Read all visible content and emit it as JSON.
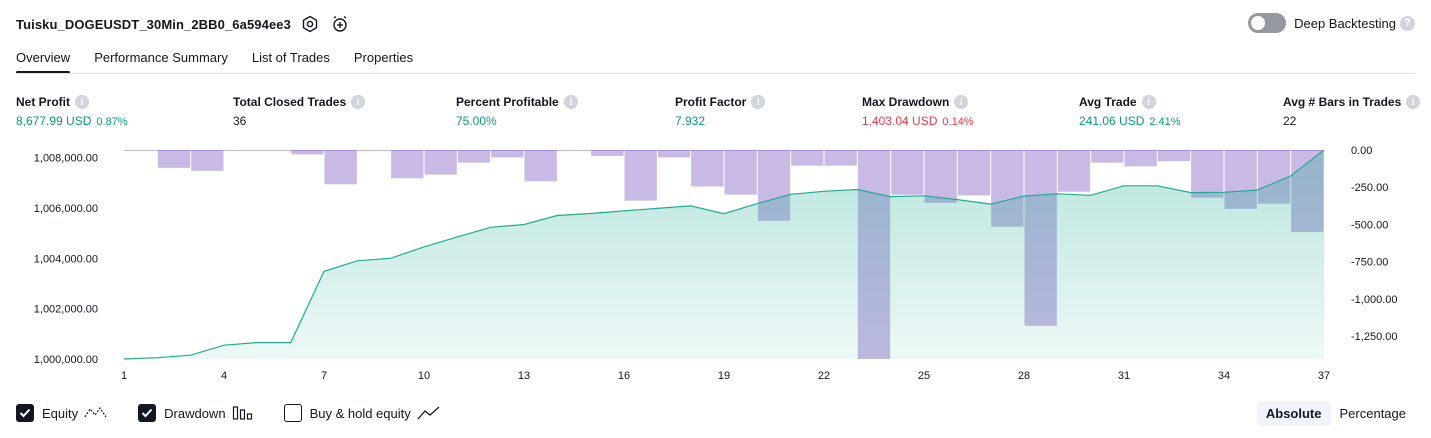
{
  "header": {
    "strategy_name": "Tuisku_DOGEUSDT_30Min_2BB0_6a594ee3",
    "icons": [
      "settings-icon",
      "add-alert-icon"
    ],
    "deep_backtesting_label": "Deep Backtesting",
    "deep_backtesting_enabled": false,
    "help_glyph": "?"
  },
  "tabs": [
    {
      "label": "Overview",
      "active": true
    },
    {
      "label": "Performance Summary",
      "active": false
    },
    {
      "label": "List of Trades",
      "active": false
    },
    {
      "label": "Properties",
      "active": false
    }
  ],
  "metrics": [
    {
      "label": "Net Profit",
      "value": "8,677.99 USD",
      "pct": "0.87%",
      "tone": "green"
    },
    {
      "label": "Total Closed Trades",
      "value": "36",
      "pct": "",
      "tone": "dark"
    },
    {
      "label": "Percent Profitable",
      "value": "75.00%",
      "pct": "",
      "tone": "green"
    },
    {
      "label": "Profit Factor",
      "value": "7.932",
      "pct": "",
      "tone": "green"
    },
    {
      "label": "Max Drawdown",
      "value": "1,403.04 USD",
      "pct": "0.14%",
      "tone": "red"
    },
    {
      "label": "Avg Trade",
      "value": "241.06 USD",
      "pct": "2.41%",
      "tone": "green"
    },
    {
      "label": "Avg # Bars in Trades",
      "value": "22",
      "pct": "",
      "tone": "dark"
    }
  ],
  "chart_data": {
    "type": "line",
    "x_ticks": [
      1,
      4,
      7,
      10,
      13,
      16,
      19,
      22,
      25,
      28,
      31,
      34,
      37
    ],
    "left_axis": {
      "ticks": [
        "1,000,000.00",
        "1,002,000.00",
        "1,004,000.00",
        "1,006,000.00",
        "1,008,000.00"
      ],
      "ylim": [
        1000000,
        1008300
      ]
    },
    "right_axis": {
      "ticks": [
        "0.00",
        "-250.00",
        "-500.00",
        "-750.00",
        "-1,000.00",
        "-1,250.00"
      ],
      "ylim": [
        -1403.04,
        0
      ]
    },
    "series": [
      {
        "name": "Equity",
        "axis": "left",
        "x": [
          1,
          2,
          3,
          4,
          5,
          6,
          7,
          8,
          9,
          10,
          11,
          12,
          13,
          14,
          15,
          16,
          17,
          18,
          19,
          20,
          21,
          22,
          23,
          24,
          25,
          26,
          27,
          28,
          29,
          30,
          31,
          32,
          33,
          34,
          35,
          36,
          37
        ],
        "values": [
          1000000,
          1000050,
          1000150,
          1000550,
          1000650,
          1000650,
          1003480,
          1003900,
          1004000,
          1004450,
          1004850,
          1005230,
          1005340,
          1005700,
          1005780,
          1005880,
          1005980,
          1006080,
          1005770,
          1006170,
          1006540,
          1006660,
          1006730,
          1006450,
          1006480,
          1006330,
          1006150,
          1006470,
          1006560,
          1006500,
          1006880,
          1006880,
          1006610,
          1006620,
          1006710,
          1007270,
          1008300
        ]
      },
      {
        "name": "Drawdown",
        "axis": "right",
        "x": [
          1,
          2,
          3,
          4,
          5,
          6,
          7,
          8,
          9,
          10,
          11,
          12,
          13,
          14,
          15,
          16,
          17,
          18,
          19,
          20,
          21,
          22,
          23,
          24,
          25,
          26,
          27,
          28,
          29,
          30,
          31,
          32,
          33,
          34,
          35,
          36,
          37
        ],
        "values": [
          0,
          -120,
          -140,
          0,
          0,
          -30,
          -230,
          0,
          -190,
          -165,
          -85,
          -50,
          -210,
          0,
          -40,
          -340,
          -50,
          -245,
          -300,
          -475,
          -105,
          -105,
          -1403.04,
          -300,
          -355,
          -305,
          -515,
          -1180,
          -280,
          -85,
          -110,
          -75,
          -320,
          -395,
          -360,
          -550,
          0
        ]
      }
    ],
    "legend_position": "bottom-left",
    "grid": false
  },
  "legend": [
    {
      "label": "Equity",
      "checked": true,
      "icon": "equity-line-icon"
    },
    {
      "label": "Drawdown",
      "checked": true,
      "icon": "drawdown-bars-icon"
    },
    {
      "label": "Buy & hold equity",
      "checked": false,
      "icon": "buy-hold-line-icon"
    }
  ],
  "scale": {
    "absolute_label": "Absolute",
    "percentage_label": "Percentage",
    "selected": "absolute"
  },
  "colors": {
    "equity_line": "#22ab94",
    "equity_fill": "#22ab94",
    "drawdown_bar": "#7e57c2",
    "profit": "#089981",
    "loss": "#f23645"
  }
}
